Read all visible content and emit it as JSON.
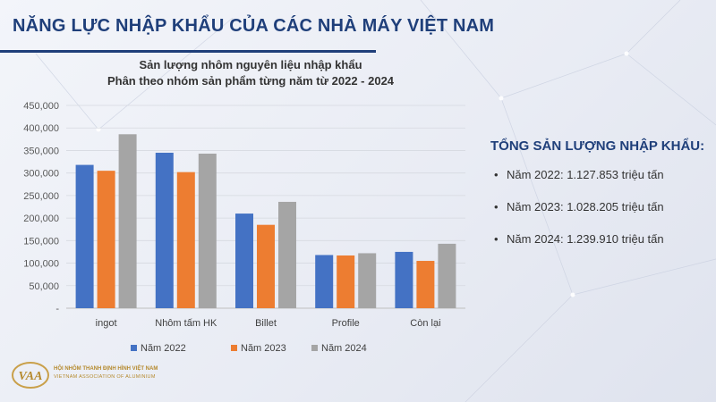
{
  "slide": {
    "title": "NĂNG LỰC NHẬP KHẨU CỦA CÁC NHÀ MÁY VIỆT NAM",
    "accent_color": "#1f3f7a"
  },
  "chart_data": {
    "type": "bar",
    "title": "Sản lượng nhôm nguyên liệu nhập khẩu",
    "subtitle": "Phân theo nhóm sản phẩm từng năm từ 2022 - 2024",
    "categories": [
      "ingot",
      "Nhôm tấm HK",
      "Billet",
      "Profile",
      "Còn lại"
    ],
    "series": [
      {
        "name": "Năm 2022",
        "color": "#4472c4",
        "values": [
          318000,
          345000,
          210000,
          118000,
          125000
        ]
      },
      {
        "name": "Năm 2023",
        "color": "#ed7d31",
        "values": [
          305000,
          302000,
          185000,
          117000,
          105000
        ]
      },
      {
        "name": "Năm 2024",
        "color": "#a5a5a5",
        "values": [
          386000,
          343000,
          236000,
          122000,
          143000
        ]
      }
    ],
    "ylim": [
      0,
      450000
    ],
    "yticks": [
      0,
      50000,
      100000,
      150000,
      200000,
      250000,
      300000,
      350000,
      400000,
      450000
    ],
    "ytick_labels": [
      "-",
      "50,000",
      "100,000",
      "150,000",
      "200,000",
      "250,000",
      "300,000",
      "350,000",
      "400,000",
      "450,000"
    ],
    "grid": true,
    "legend_position": "bottom"
  },
  "summary": {
    "heading": "TỔNG SẢN LƯỢNG NHẬP KHẨU:",
    "items": [
      "Năm 2022: 1.127.853 triệu tấn",
      "Năm 2023: 1.028.205 triệu tấn",
      "Năm 2024: 1.239.910 triệu tấn"
    ],
    "bullet": "•"
  },
  "logo": {
    "mark_text": "VAA",
    "name": "HỘI NHÔM THANH ĐỊNH HÌNH VIỆT NAM",
    "subtitle": "VIETNAM ASSOCIATION OF ALUMINIUM"
  }
}
